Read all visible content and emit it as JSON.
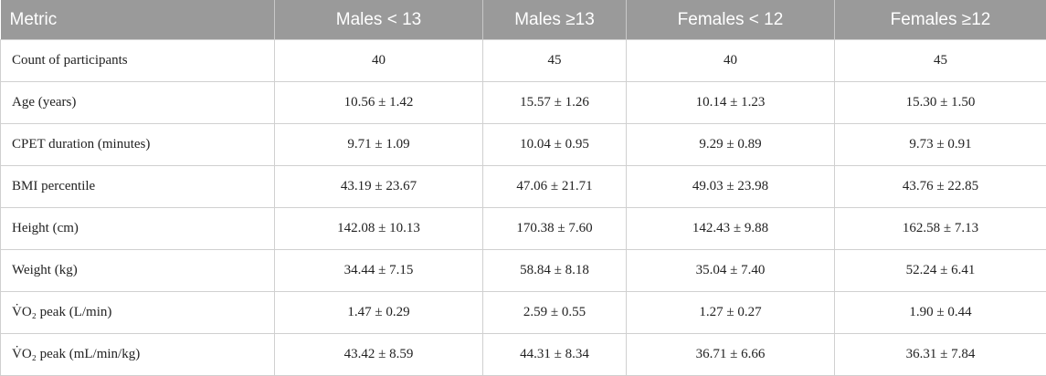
{
  "table": {
    "header": [
      "Metric",
      "Males < 13",
      "Males ≥13",
      "Females < 12",
      "Females ≥12"
    ],
    "rows": [
      [
        "Count of participants",
        "40",
        "45",
        "40",
        "45"
      ],
      [
        "Age (years)",
        "10.56 ± 1.42",
        "15.57 ± 1.26",
        "10.14 ± 1.23",
        "15.30 ± 1.50"
      ],
      [
        "CPET duration (minutes)",
        "9.71 ± 1.09",
        "10.04 ± 0.95",
        "9.29 ± 0.89",
        "9.73 ± 0.91"
      ],
      [
        "BMI percentile",
        "43.19 ± 23.67",
        "47.06 ± 21.71",
        "49.03 ± 23.98",
        "43.76 ± 22.85"
      ],
      [
        "Height (cm)",
        "142.08 ± 10.13",
        "170.38 ± 7.60",
        "142.43 ± 9.88",
        "162.58 ± 7.13"
      ],
      [
        "Weight (kg)",
        "34.44 ± 7.15",
        "58.84 ± 8.18",
        "35.04 ± 7.40",
        "52.24 ± 6.41"
      ],
      [
        "V̇O₂ peak (L/min)",
        "1.47 ± 0.29",
        "2.59 ± 0.55",
        "1.27 ± 0.27",
        "1.90 ± 0.44"
      ],
      [
        "V̇O₂ peak (mL/min/kg)",
        "43.42 ± 8.59",
        "44.31 ± 8.34",
        "36.71 ± 6.66",
        "36.31 ± 7.84"
      ]
    ]
  }
}
